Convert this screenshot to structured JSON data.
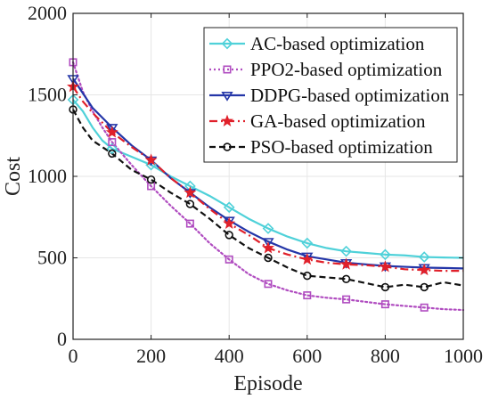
{
  "chart_data": {
    "type": "line",
    "title": "",
    "xlabel": "Episode",
    "ylabel": "Cost",
    "xlim": [
      0,
      1000
    ],
    "ylim": [
      0,
      2000
    ],
    "xticks": [
      "0",
      "200",
      "400",
      "600",
      "800",
      "1000"
    ],
    "yticks": [
      "0",
      "500",
      "1000",
      "1500",
      "2000"
    ],
    "grid": true,
    "legend_position": "top-right",
    "series": [
      {
        "name": "AC-based optimization",
        "color": "#4fd1d9",
        "line_style": "solid",
        "marker": "diamond",
        "x": [
          0,
          25,
          50,
          75,
          100,
          150,
          200,
          250,
          300,
          350,
          400,
          450,
          500,
          550,
          600,
          650,
          700,
          750,
          800,
          850,
          900,
          950,
          1000
        ],
        "y": [
          1470,
          1400,
          1300,
          1220,
          1170,
          1120,
          1070,
          1000,
          940,
          880,
          810,
          740,
          680,
          630,
          590,
          560,
          540,
          530,
          520,
          515,
          505,
          502,
          500
        ]
      },
      {
        "name": "PPO2-based optimization",
        "color": "#b04cc0",
        "line_style": "dotted",
        "marker": "square",
        "x": [
          0,
          25,
          50,
          75,
          100,
          150,
          200,
          250,
          300,
          350,
          400,
          450,
          500,
          550,
          600,
          650,
          700,
          750,
          800,
          850,
          900,
          950,
          1000
        ],
        "y": [
          1700,
          1520,
          1400,
          1300,
          1210,
          1070,
          940,
          820,
          710,
          590,
          490,
          400,
          340,
          300,
          270,
          255,
          245,
          230,
          215,
          205,
          195,
          185,
          180
        ]
      },
      {
        "name": "DDPG-based optimization",
        "color": "#2436a8",
        "line_style": "solid",
        "marker": "triangle-down",
        "x": [
          0,
          25,
          50,
          75,
          100,
          150,
          200,
          250,
          300,
          350,
          400,
          450,
          500,
          550,
          600,
          650,
          700,
          750,
          800,
          850,
          900,
          950,
          1000
        ],
        "y": [
          1600,
          1510,
          1420,
          1360,
          1300,
          1190,
          1100,
          990,
          900,
          810,
          730,
          660,
          600,
          550,
          510,
          490,
          470,
          460,
          450,
          445,
          440,
          438,
          435
        ]
      },
      {
        "name": "GA-based optimization",
        "color": "#e0202a",
        "line_style": "dashdot",
        "marker": "star",
        "x": [
          0,
          25,
          50,
          75,
          100,
          150,
          200,
          250,
          300,
          350,
          400,
          450,
          500,
          550,
          600,
          650,
          700,
          750,
          800,
          850,
          900,
          950,
          1000
        ],
        "y": [
          1550,
          1460,
          1390,
          1330,
          1270,
          1180,
          1100,
          990,
          900,
          800,
          710,
          640,
          560,
          520,
          490,
          470,
          460,
          455,
          445,
          430,
          425,
          420,
          420
        ]
      },
      {
        "name": "PSO-based optimization",
        "color": "#111111",
        "line_style": "dashed",
        "marker": "circle",
        "x": [
          0,
          25,
          50,
          75,
          100,
          150,
          200,
          250,
          300,
          350,
          400,
          450,
          500,
          550,
          600,
          650,
          700,
          750,
          800,
          850,
          900,
          950,
          1000
        ],
        "y": [
          1410,
          1300,
          1220,
          1180,
          1140,
          1040,
          980,
          900,
          830,
          740,
          640,
          560,
          500,
          440,
          390,
          380,
          370,
          345,
          320,
          335,
          320,
          350,
          330
        ]
      }
    ]
  }
}
